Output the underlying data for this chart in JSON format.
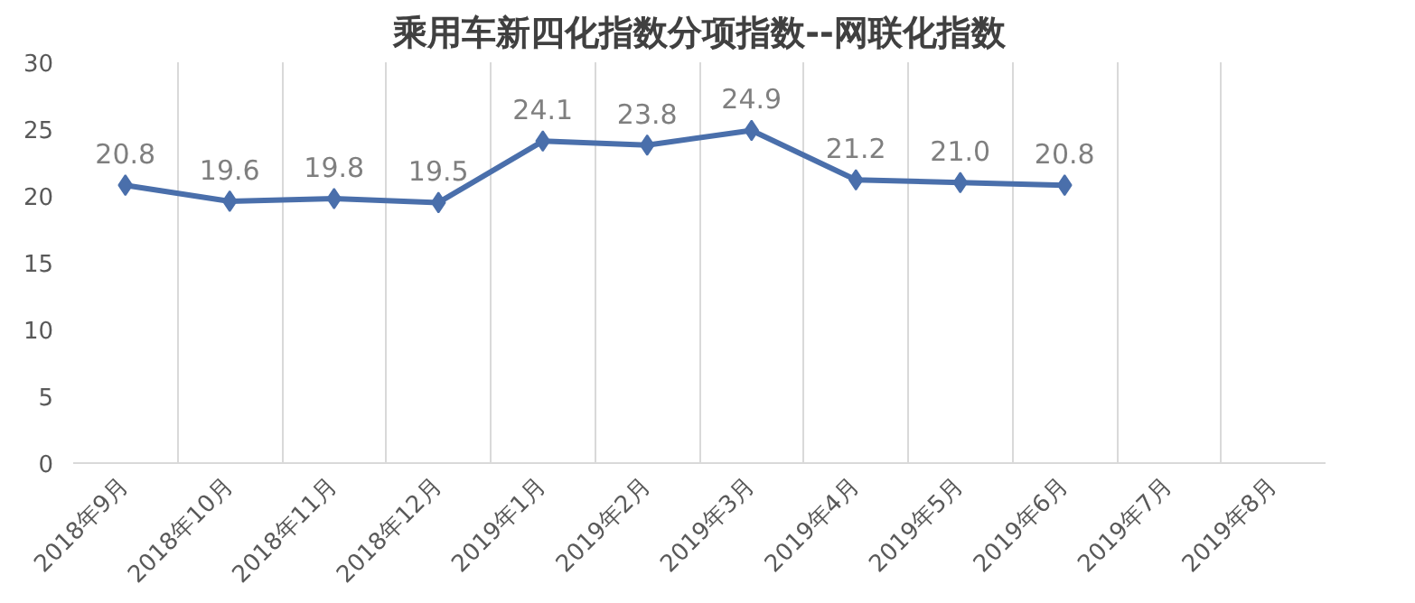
{
  "chart_data": {
    "type": "line",
    "title": "乘用车新四化指数分项指数--网联化指数",
    "categories": [
      "2018年9月",
      "2018年10月",
      "2018年11月",
      "2018年12月",
      "2019年1月",
      "2019年2月",
      "2019年3月",
      "2019年4月",
      "2019年5月",
      "2019年6月",
      "2019年7月",
      "2019年8月"
    ],
    "series": [
      {
        "color": "#4a6fab",
        "values": [
          20.8,
          19.6,
          19.8,
          19.5,
          24.1,
          23.8,
          24.9,
          21.2,
          21.0,
          20.8,
          null,
          null
        ],
        "value_labels": [
          "20.8",
          "19.6",
          "19.8",
          "19.5",
          "24.1",
          "23.8",
          "24.9",
          "21.2",
          "21.0",
          "20.8",
          null,
          null
        ]
      }
    ],
    "ylim": [
      0,
      30
    ],
    "yticks": [
      0,
      5,
      10,
      15,
      20,
      25,
      30
    ],
    "grid": "x",
    "marker": "diamond",
    "line_style": "solid"
  }
}
